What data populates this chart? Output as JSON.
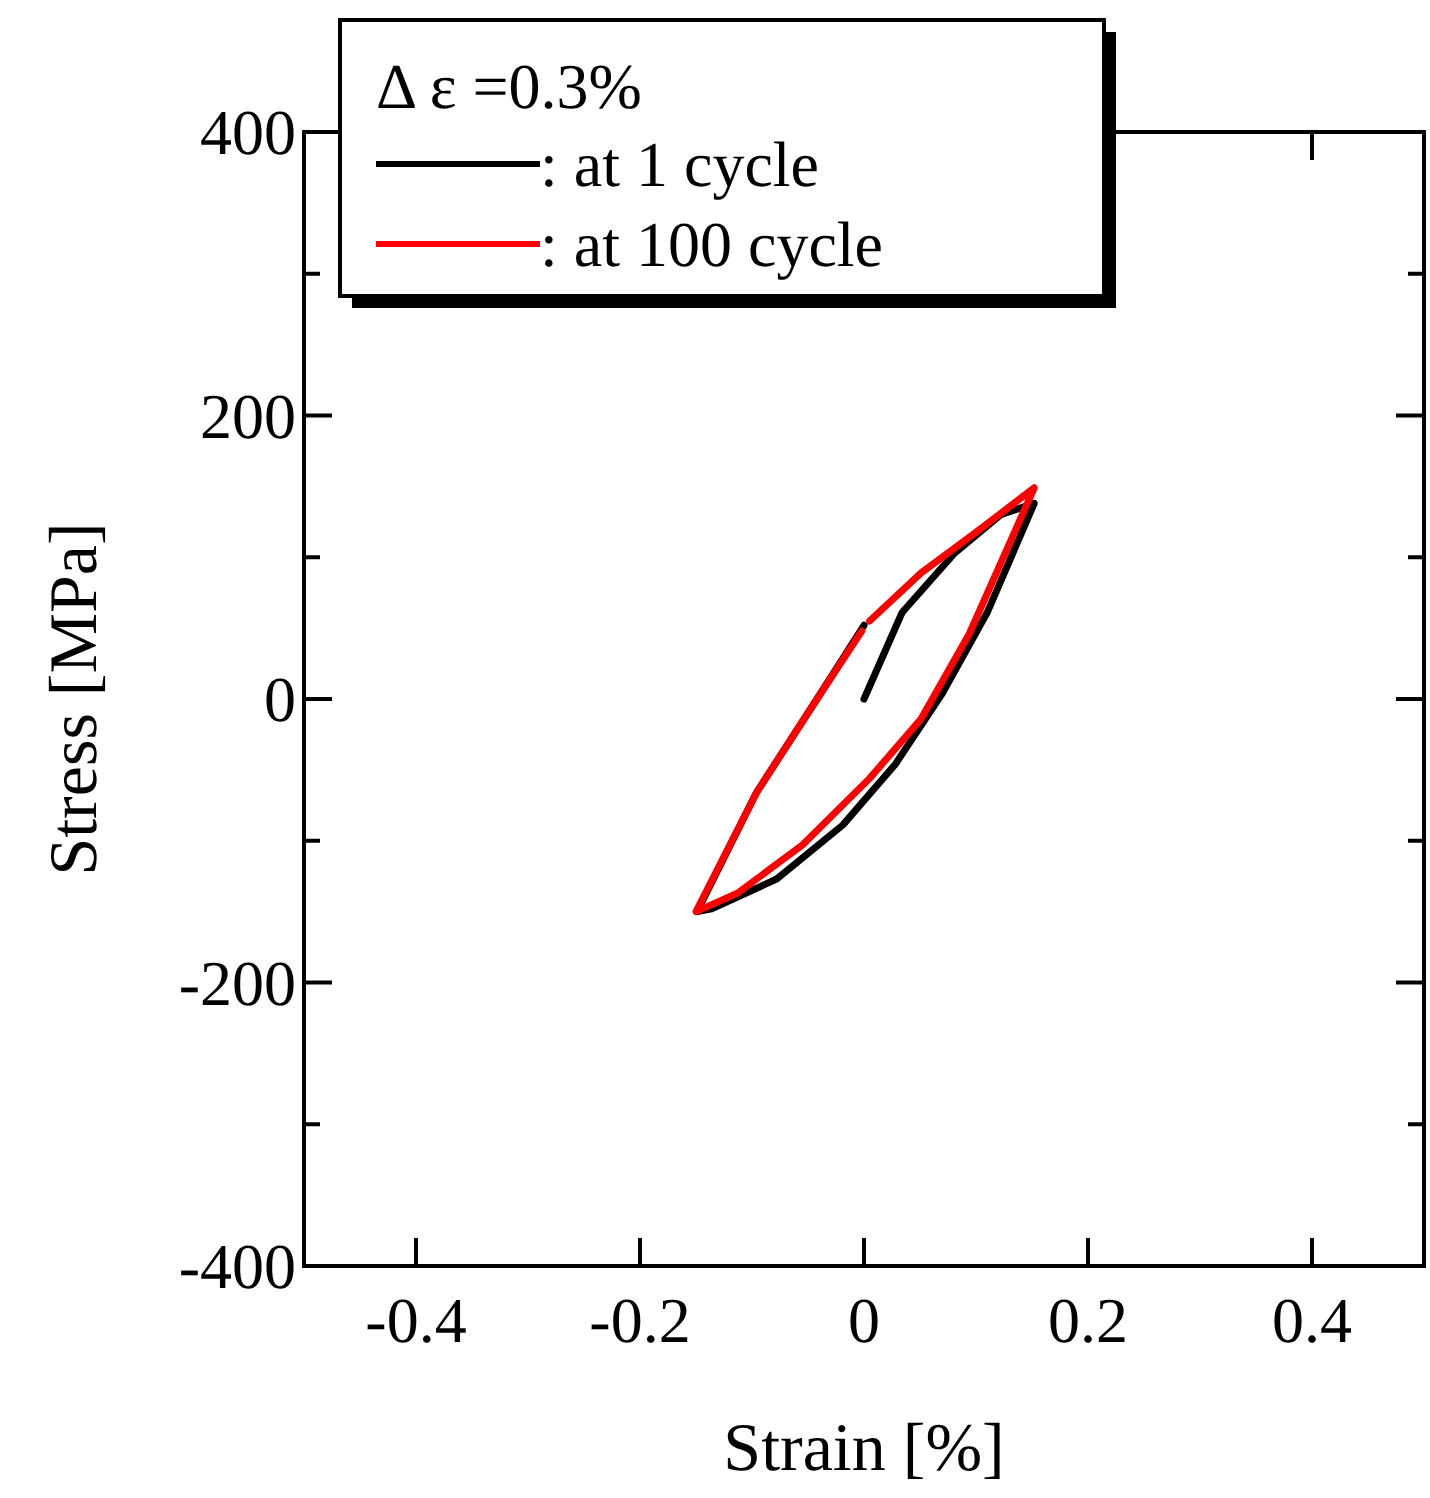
{
  "chart_data": {
    "type": "line",
    "xlabel": "Strain [%]",
    "ylabel": "Stress [MPa]",
    "legend_title": "Δ  ε =0.3%",
    "legend": "top left",
    "grid": false,
    "marker": "none",
    "line_style": "solid",
    "xlim": [
      -0.5,
      0.5
    ],
    "xticks": [
      -0.4,
      -0.2,
      0,
      0.2,
      0.4
    ],
    "ylim": [
      -400,
      400
    ],
    "yticks": [
      -400,
      {
        "value": -300,
        "label": null
      },
      -200,
      {
        "value": -100,
        "label": null
      },
      0,
      {
        "value": 100,
        "label": null
      },
      200,
      {
        "value": 300,
        "label": null
      },
      400
    ],
    "series": [
      {
        "name": ": at 1 cycle",
        "color": "#000000",
        "x": [
          0,
          0.034,
          0.081,
          0.122,
          0.152,
          0.11,
          0.07,
          0.028,
          -0.019,
          -0.078,
          -0.136,
          -0.149,
          -0.096,
          -0.042,
          0
        ],
        "values": [
          0,
          61,
          103,
          130,
          138,
          61,
          4,
          -46,
          -89,
          -127,
          -148,
          -150,
          -66,
          0,
          52
        ]
      },
      {
        "name": ": at 100 cycle",
        "color": "#ff0000",
        "x": [
          0.005,
          0.051,
          0.099,
          0.152,
          0.094,
          0.051,
          0.005,
          -0.055,
          -0.113,
          -0.15,
          -0.096,
          -0.042,
          -0.002
        ],
        "values": [
          55,
          89,
          117,
          149,
          46,
          -14,
          -56,
          -103,
          -137,
          -150,
          -66,
          0,
          48
        ]
      }
    ]
  }
}
